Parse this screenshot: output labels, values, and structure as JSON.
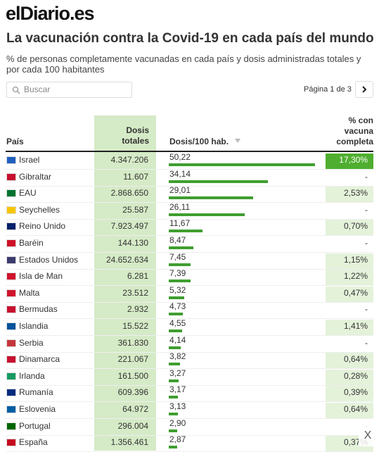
{
  "header": {
    "logo": "elDiario.es",
    "title": "La vacunación contra la Covid-19 en cada país del mundo",
    "subtitle": "% de personas completamente vacunadas en cada país y dosis administradas totales y por cada 100 habitantes"
  },
  "search": {
    "placeholder": "Buscar"
  },
  "pagination": {
    "label": "Página 1 de 3"
  },
  "table": {
    "columns": [
      "País",
      "Dosis totales",
      "Dosis/100 hab.",
      "% con vacuna completa"
    ],
    "rows": [
      {
        "country": "Israel",
        "total": "4.347.206",
        "per100": 50.22,
        "per100_label": "50,22",
        "complete": "17,30%"
      },
      {
        "country": "Gibraltar",
        "total": "11.607",
        "per100": 34.14,
        "per100_label": "34,14",
        "complete": "-"
      },
      {
        "country": "EAU",
        "total": "2.868.650",
        "per100": 29.01,
        "per100_label": "29,01",
        "complete": "2,53%"
      },
      {
        "country": "Seychelles",
        "total": "25.587",
        "per100": 26.11,
        "per100_label": "26,11",
        "complete": "-"
      },
      {
        "country": "Reino Unido",
        "total": "7.923.497",
        "per100": 11.67,
        "per100_label": "11,67",
        "complete": "0,70%"
      },
      {
        "country": "Baréin",
        "total": "144.130",
        "per100": 8.47,
        "per100_label": "8,47",
        "complete": "-"
      },
      {
        "country": "Estados Unidos",
        "total": "24.652.634",
        "per100": 7.45,
        "per100_label": "7,45",
        "complete": "1,15%"
      },
      {
        "country": "Isla de Man",
        "total": "6.281",
        "per100": 7.39,
        "per100_label": "7,39",
        "complete": "1,22%"
      },
      {
        "country": "Malta",
        "total": "23.512",
        "per100": 5.32,
        "per100_label": "5,32",
        "complete": "0,47%"
      },
      {
        "country": "Bermudas",
        "total": "2.932",
        "per100": 4.73,
        "per100_label": "4,73",
        "complete": "-"
      },
      {
        "country": "Islandia",
        "total": "15.522",
        "per100": 4.55,
        "per100_label": "4,55",
        "complete": "1,41%"
      },
      {
        "country": "Serbia",
        "total": "361.830",
        "per100": 4.14,
        "per100_label": "4,14",
        "complete": "-"
      },
      {
        "country": "Dinamarca",
        "total": "221.067",
        "per100": 3.82,
        "per100_label": "3,82",
        "complete": "0,64%"
      },
      {
        "country": "Irlanda",
        "total": "161.500",
        "per100": 3.27,
        "per100_label": "3,27",
        "complete": "0,28%"
      },
      {
        "country": "Rumanía",
        "total": "609.396",
        "per100": 3.17,
        "per100_label": "3,17",
        "complete": "0,39%"
      },
      {
        "country": "Eslovenia",
        "total": "64.972",
        "per100": 3.13,
        "per100_label": "3,13",
        "complete": "0,64%"
      },
      {
        "country": "Portugal",
        "total": "296.004",
        "per100": 2.9,
        "per100_label": "2,90",
        "complete": "-"
      },
      {
        "country": "España",
        "total": "1.356.461",
        "per100": 2.87,
        "per100_label": "2,87",
        "complete": "0,37%"
      }
    ]
  },
  "close": "X"
}
